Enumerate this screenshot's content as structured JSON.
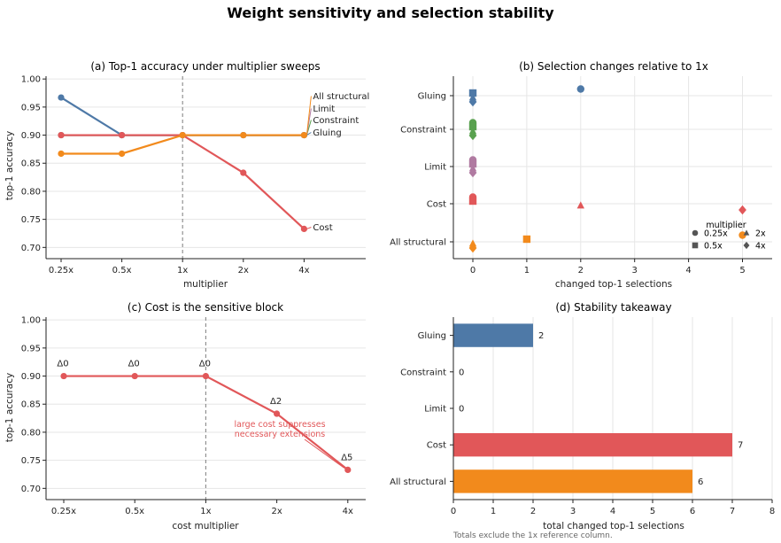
{
  "figure": {
    "title": "Weight sensitivity and selection stability",
    "footnote": "Totals exclude the 1x reference column."
  },
  "colors": {
    "all_structural": "#f28a1c",
    "cost": "#e15759",
    "limit": "#b07aa1",
    "constraint": "#59a14f",
    "gluing": "#4e79a7",
    "grid": "#e6e6e6",
    "reference_line": "#888888",
    "marker_neutral": "#555555"
  },
  "icons": {
    "0.25x": "circle",
    "0.5x": "square",
    "2x": "triangle",
    "4x": "diamond"
  },
  "chart_data": [
    {
      "id": "a",
      "type": "line",
      "title": "(a) Top-1 accuracy under multiplier sweeps",
      "xlabel": "multiplier",
      "ylabel": "top-1 accuracy",
      "categories": [
        "0.25x",
        "0.5x",
        "1x",
        "2x",
        "4x"
      ],
      "ylim": [
        0.68,
        1.005
      ],
      "yticks": [
        "0.70",
        "0.75",
        "0.80",
        "0.85",
        "0.90",
        "0.95",
        "1.00"
      ],
      "reference_x": "1x",
      "grid": "y",
      "series": [
        {
          "name": "Gluing",
          "color_key": "gluing",
          "values": [
            0.967,
            0.9,
            0.9,
            0.9,
            0.9
          ]
        },
        {
          "name": "Constraint",
          "color_key": "constraint",
          "values": [
            0.9,
            0.9,
            0.9,
            0.9,
            0.9
          ]
        },
        {
          "name": "Limit",
          "color_key": "limit",
          "values": [
            0.9,
            0.9,
            0.9,
            0.9,
            0.9
          ]
        },
        {
          "name": "Cost",
          "color_key": "cost",
          "values": [
            0.9,
            0.9,
            0.9,
            0.833,
            0.733
          ]
        },
        {
          "name": "All structural",
          "color_key": "all_structural",
          "values": [
            0.867,
            0.867,
            0.9,
            0.9,
            0.9
          ]
        }
      ]
    },
    {
      "id": "b",
      "type": "scatter",
      "title": "(b) Selection changes relative to 1x",
      "xlabel": "changed top-1 selections",
      "categories": [
        "All structural",
        "Cost",
        "Limit",
        "Constraint",
        "Gluing"
      ],
      "xlim": [
        -0.4,
        5.5
      ],
      "xticks": [
        0,
        1,
        2,
        3,
        4,
        5
      ],
      "grid": "both",
      "legend": {
        "title": "multiplier",
        "placement": "lower-right",
        "entries": [
          "0.25x",
          "0.5x",
          "2x",
          "4x"
        ]
      },
      "points": [
        {
          "block": "Gluing",
          "multiplier": "0.25x",
          "value": 2
        },
        {
          "block": "Gluing",
          "multiplier": "0.5x",
          "value": 0
        },
        {
          "block": "Gluing",
          "multiplier": "2x",
          "value": 0
        },
        {
          "block": "Gluing",
          "multiplier": "4x",
          "value": 0
        },
        {
          "block": "Constraint",
          "multiplier": "0.25x",
          "value": 0
        },
        {
          "block": "Constraint",
          "multiplier": "0.5x",
          "value": 0
        },
        {
          "block": "Constraint",
          "multiplier": "2x",
          "value": 0
        },
        {
          "block": "Constraint",
          "multiplier": "4x",
          "value": 0
        },
        {
          "block": "Limit",
          "multiplier": "0.25x",
          "value": 0
        },
        {
          "block": "Limit",
          "multiplier": "0.5x",
          "value": 0
        },
        {
          "block": "Limit",
          "multiplier": "2x",
          "value": 0
        },
        {
          "block": "Limit",
          "multiplier": "4x",
          "value": 0
        },
        {
          "block": "Cost",
          "multiplier": "0.25x",
          "value": 0
        },
        {
          "block": "Cost",
          "multiplier": "0.5x",
          "value": 0
        },
        {
          "block": "Cost",
          "multiplier": "2x",
          "value": 2
        },
        {
          "block": "Cost",
          "multiplier": "4x",
          "value": 5
        },
        {
          "block": "All structural",
          "multiplier": "0.25x",
          "value": 5
        },
        {
          "block": "All structural",
          "multiplier": "0.5x",
          "value": 1
        },
        {
          "block": "All structural",
          "multiplier": "2x",
          "value": 0
        },
        {
          "block": "All structural",
          "multiplier": "4x",
          "value": 0
        }
      ]
    },
    {
      "id": "c",
      "type": "line",
      "title": "(c) Cost is the sensitive block",
      "xlabel": "cost multiplier",
      "ylabel": "top-1 accuracy",
      "categories": [
        "0.25x",
        "0.5x",
        "1x",
        "2x",
        "4x"
      ],
      "ylim": [
        0.68,
        1.005
      ],
      "yticks": [
        "0.70",
        "0.75",
        "0.80",
        "0.85",
        "0.90",
        "0.95",
        "1.00"
      ],
      "reference_x": "1x",
      "grid": "y",
      "series": [
        {
          "color_key": "cost",
          "values": [
            0.9,
            0.9,
            0.9,
            0.833,
            0.733
          ]
        }
      ],
      "point_labels": [
        "Δ0",
        "Δ0",
        "Δ0",
        "Δ2",
        "Δ5"
      ],
      "annotation": {
        "lines": [
          "large cost suppresses",
          "necessary extensions"
        ],
        "points_to": "4x"
      }
    },
    {
      "id": "d",
      "type": "bar",
      "orientation": "horizontal",
      "title": "(d) Stability takeaway",
      "xlabel": "total changed top-1 selections",
      "categories": [
        "Gluing",
        "Constraint",
        "Limit",
        "Cost",
        "All structural"
      ],
      "values": [
        2,
        0,
        0,
        7,
        6
      ],
      "color_keys": [
        "gluing",
        "constraint",
        "limit",
        "cost",
        "all_structural"
      ],
      "xlim": [
        0,
        8
      ],
      "xticks": [
        0,
        1,
        2,
        3,
        4,
        5,
        6,
        7,
        8
      ],
      "grid": "x"
    }
  ]
}
